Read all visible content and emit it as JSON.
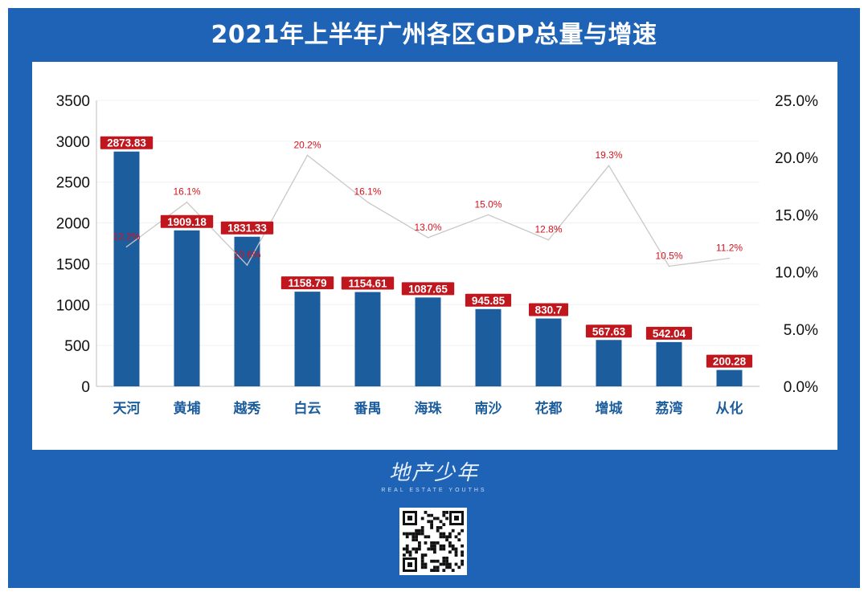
{
  "title": "2021年上半年广州各区GDP总量与增速",
  "watermark": {
    "text": "地产少年",
    "subtext": "REAL ESTATE YOUTHS",
    "qr": "qr-code"
  },
  "colors": {
    "frame": "#1e63b6",
    "bar": "#1c5d9e",
    "bar_label_bg": "#c0161d",
    "line": "#c8c8c8",
    "line_label": "#d8121c",
    "category_label": "#1c5d9e"
  },
  "chart_data": {
    "type": "bar",
    "title": "2021年上半年广州各区GDP总量与增速",
    "categories": [
      "天河",
      "黄埔",
      "越秀",
      "白云",
      "番禺",
      "海珠",
      "南沙",
      "花都",
      "增城",
      "荔湾",
      "从化"
    ],
    "series": [
      {
        "type": "bar",
        "axis": "left",
        "values": [
          2873.83,
          1909.18,
          1831.33,
          1158.79,
          1154.61,
          1087.65,
          945.85,
          830.7,
          567.63,
          542.04,
          200.28
        ],
        "labels": [
          "2873.83",
          "1909.18",
          "1831.33",
          "1158.79",
          "1154.61",
          "1087.65",
          "945.85",
          "830.7",
          "567.63",
          "542.04",
          "200.28"
        ]
      },
      {
        "type": "line",
        "axis": "right",
        "values": [
          12.2,
          16.1,
          10.6,
          20.2,
          16.1,
          13.0,
          15.0,
          12.8,
          19.3,
          10.5,
          11.2
        ],
        "labels": [
          "12.2%",
          "16.1%",
          "10.6%",
          "20.2%",
          "16.1%",
          "13.0%",
          "15.0%",
          "12.8%",
          "19.3%",
          "10.5%",
          "11.2%"
        ]
      }
    ],
    "left_axis": {
      "ylim": [
        0,
        3500
      ],
      "ticks": [
        "0",
        "500",
        "1000",
        "1500",
        "2000",
        "2500",
        "3000",
        "3500"
      ]
    },
    "right_axis": {
      "ylim": [
        0,
        25
      ],
      "ticks": [
        "0.0%",
        "5.0%",
        "10.0%",
        "15.0%",
        "20.0%",
        "25.0%"
      ]
    },
    "grid": true,
    "legend": "none"
  }
}
